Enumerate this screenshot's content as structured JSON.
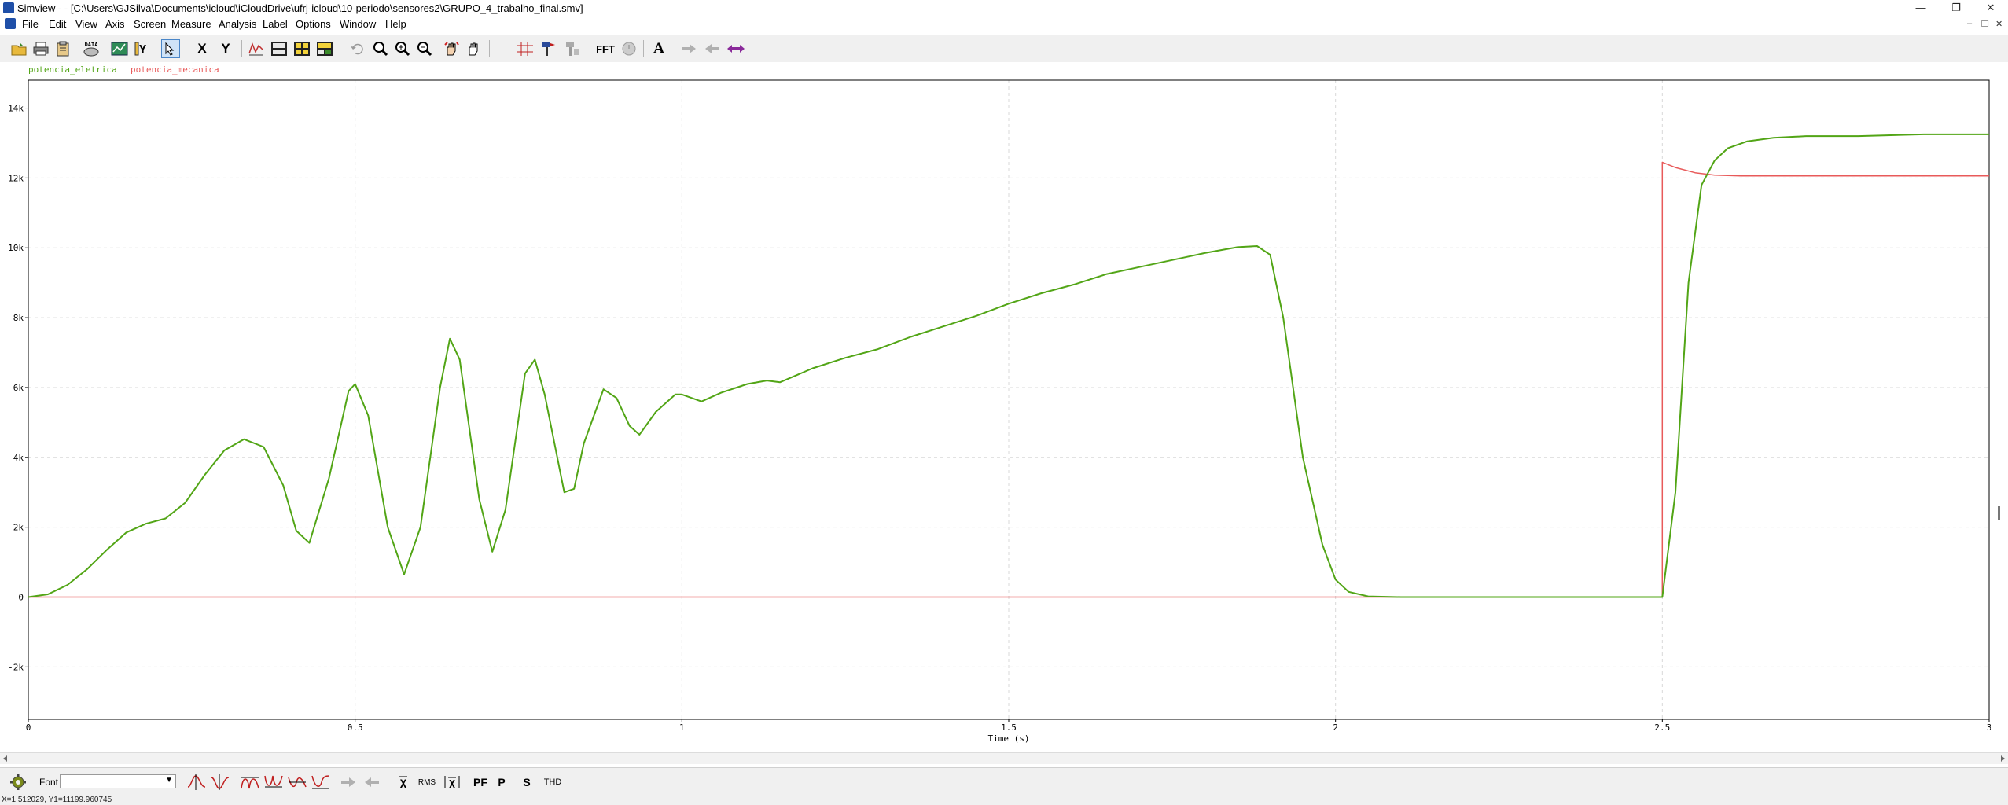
{
  "window": {
    "title": "Simview - - [C:\\Users\\GJSilva\\Documents\\icloud\\iCloudDrive\\ufrj-icloud\\10-periodo\\sensores2\\GRUPO_4_trabalho_final.smv]",
    "minimize": "—",
    "restore": "❐",
    "close": "✕"
  },
  "menubar": {
    "items": [
      "File",
      "Edit",
      "View",
      "Axis",
      "Screen",
      "Measure",
      "Analysis",
      "Label",
      "Options",
      "Window",
      "Help"
    ],
    "mdi_min": "–",
    "mdi_restore": "❐",
    "mdi_close": "✕"
  },
  "toolbar": {
    "data_label": "DATA",
    "x_label": "X",
    "y_label": "Y",
    "fft_label": "FFT",
    "text_label": "A"
  },
  "bottombar": {
    "font_label": "Font",
    "rms_label": "RMS",
    "pf_label": "PF",
    "p_label": "P",
    "s_label": "S",
    "thd_label": "THD"
  },
  "status": {
    "text": "X=1.512029, Y1=11199.960745"
  },
  "colors": {
    "series1": "#52a516",
    "series2": "#e85a5a",
    "grid": "#d9d9d9"
  },
  "chart_data": {
    "type": "line",
    "xlabel": "Time (s)",
    "ylabel": "",
    "xlim": [
      0,
      3
    ],
    "ylim": [
      -3500,
      14800
    ],
    "x_ticks": [
      0,
      0.5,
      1,
      1.5,
      2,
      2.5,
      3
    ],
    "x_tick_labels": [
      "0",
      "0.5",
      "1",
      "1.5",
      "2",
      "2.5",
      "3"
    ],
    "y_ticks": [
      -2000,
      0,
      2000,
      4000,
      6000,
      8000,
      10000,
      12000,
      14000
    ],
    "y_tick_labels": [
      "-2k",
      "0",
      "2k",
      "4k",
      "6k",
      "8k",
      "10k",
      "12k",
      "14k"
    ],
    "grid": true,
    "series": [
      {
        "name": "potencia_eletrica",
        "color": "#52a516",
        "x": [
          0,
          0.03,
          0.06,
          0.09,
          0.12,
          0.15,
          0.18,
          0.21,
          0.24,
          0.27,
          0.3,
          0.33,
          0.36,
          0.39,
          0.41,
          0.43,
          0.46,
          0.49,
          0.5,
          0.52,
          0.55,
          0.575,
          0.6,
          0.63,
          0.645,
          0.66,
          0.69,
          0.71,
          0.73,
          0.76,
          0.775,
          0.79,
          0.82,
          0.835,
          0.85,
          0.88,
          0.9,
          0.92,
          0.935,
          0.96,
          0.99,
          1.0,
          1.03,
          1.06,
          1.1,
          1.13,
          1.15,
          1.2,
          1.25,
          1.3,
          1.35,
          1.4,
          1.45,
          1.5,
          1.55,
          1.6,
          1.65,
          1.7,
          1.75,
          1.8,
          1.85,
          1.88,
          1.9,
          1.92,
          1.95,
          1.98,
          2.0,
          2.02,
          2.05,
          2.1,
          2.2,
          2.3,
          2.4,
          2.5,
          2.52,
          2.54,
          2.56,
          2.58,
          2.6,
          2.63,
          2.67,
          2.72,
          2.8,
          2.9,
          3.0
        ],
        "y": [
          0,
          80,
          350,
          800,
          1350,
          1850,
          2100,
          2250,
          2700,
          3500,
          4200,
          4520,
          4300,
          3200,
          1900,
          1550,
          3400,
          5900,
          6100,
          5200,
          2000,
          650,
          2000,
          6000,
          7400,
          6800,
          2800,
          1300,
          2500,
          6400,
          6800,
          5800,
          3000,
          3100,
          4400,
          5950,
          5700,
          4900,
          4650,
          5300,
          5800,
          5800,
          5600,
          5850,
          6100,
          6200,
          6150,
          6550,
          6850,
          7100,
          7450,
          7750,
          8050,
          8400,
          8700,
          8950,
          9250,
          9450,
          9650,
          9850,
          10020,
          10050,
          9800,
          8000,
          4000,
          1500,
          500,
          150,
          20,
          0,
          0,
          0,
          0,
          0,
          3000,
          9000,
          11800,
          12500,
          12850,
          13050,
          13150,
          13200,
          13200,
          13250,
          13250
        ]
      },
      {
        "name": "potencia_mecanica",
        "color": "#e85a5a",
        "x": [
          0,
          2.5,
          2.5,
          2.52,
          2.55,
          2.58,
          2.62,
          2.7,
          2.8,
          3.0
        ],
        "y": [
          0,
          0,
          12450,
          12300,
          12150,
          12080,
          12060,
          12060,
          12060,
          12060
        ]
      }
    ]
  }
}
